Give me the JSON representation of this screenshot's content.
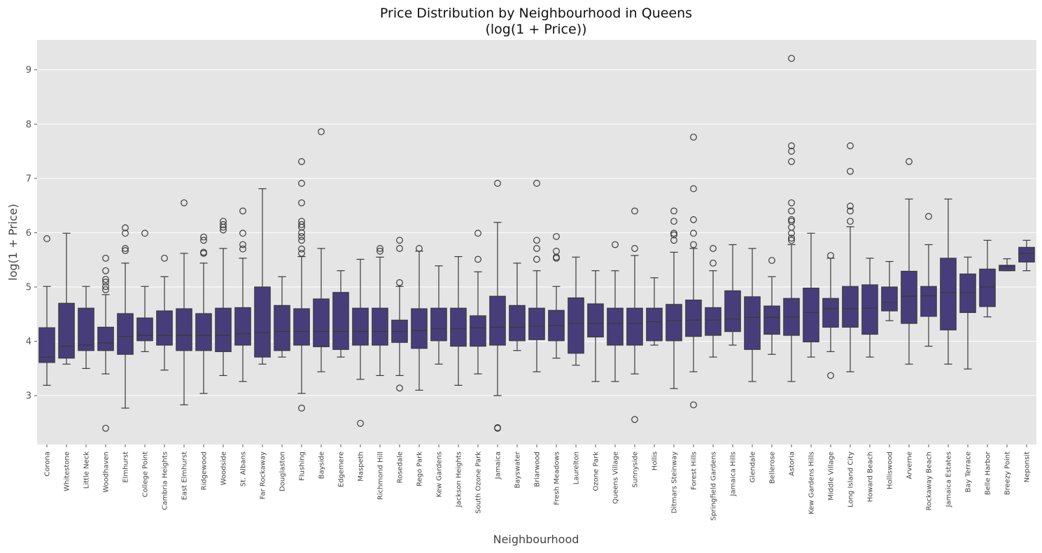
{
  "chart_data": {
    "type": "boxplot",
    "title": "Price Distribution by Neighbourhood in Queens",
    "subtitle": "(log(1 + Price))",
    "xlabel": "Neighbourhood",
    "ylabel": "log(1 + Price)",
    "ylim": [
      2.1,
      9.55
    ],
    "yticks": [
      3,
      4,
      5,
      6,
      7,
      8,
      9
    ],
    "grid": true,
    "box_color": "#483d7b",
    "background_color": "#e5e5e5",
    "categories": [
      "Corona",
      "Whitestone",
      "Little Neck",
      "Woodhaven",
      "Elmhurst",
      "College Point",
      "Cambria Heights",
      "East Elmhurst",
      "Ridgewood",
      "Woodside",
      "St. Albans",
      "Far Rockaway",
      "Douglaston",
      "Flushing",
      "Bayside",
      "Edgemere",
      "Maspeth",
      "Richmond Hill",
      "Rosedale",
      "Rego Park",
      "Kew Gardens",
      "Jackson Heights",
      "South Ozone Park",
      "Jamaica",
      "Bayswater",
      "Briarwood",
      "Fresh Meadows",
      "Laurelton",
      "Ozone Park",
      "Queens Village",
      "Sunnyside",
      "Hollis",
      "Ditmars Steinway",
      "Forest Hills",
      "Springfield Gardens",
      "Jamaica Hills",
      "Glendale",
      "Bellerose",
      "Astoria",
      "Kew Gardens Hills",
      "Middle Village",
      "Long Island City",
      "Howard Beach",
      "Holliswood",
      "Arverne",
      "Rockaway Beach",
      "Jamaica Estates",
      "Bay Terrace",
      "Belle Harbor",
      "Breezy Point",
      "Neponsit"
    ],
    "boxes": [
      {
        "whislo": 3.19,
        "q1": 3.61,
        "med": 3.71,
        "q3": 4.25,
        "whishi": 5.01,
        "fliers": [
          5.89
        ]
      },
      {
        "whislo": 3.58,
        "q1": 3.69,
        "med": 3.91,
        "q3": 4.7,
        "whishi": 5.99,
        "fliers": []
      },
      {
        "whislo": 3.5,
        "q1": 3.83,
        "med": 3.93,
        "q3": 4.61,
        "whishi": 5.01,
        "fliers": []
      },
      {
        "whislo": 3.4,
        "q1": 3.83,
        "med": 3.97,
        "q3": 4.26,
        "whishi": 4.86,
        "fliers": [
          2.4,
          4.95,
          5.01,
          5.09,
          5.14,
          5.3,
          5.53
        ]
      },
      {
        "whislo": 2.77,
        "q1": 3.76,
        "med": 4.09,
        "q3": 4.51,
        "whishi": 5.44,
        "fliers": [
          5.67,
          5.71,
          5.99,
          6.09
        ]
      },
      {
        "whislo": 3.81,
        "q1": 4.01,
        "med": 4.11,
        "q3": 4.43,
        "whishi": 5.01,
        "fliers": [
          5.99
        ]
      },
      {
        "whislo": 3.47,
        "q1": 3.93,
        "med": 4.11,
        "q3": 4.56,
        "whishi": 5.19,
        "fliers": [
          5.53
        ]
      },
      {
        "whislo": 2.83,
        "q1": 3.83,
        "med": 4.11,
        "q3": 4.6,
        "whishi": 5.62,
        "fliers": [
          6.55
        ]
      },
      {
        "whislo": 3.04,
        "q1": 3.83,
        "med": 4.11,
        "q3": 4.51,
        "whishi": 5.44,
        "fliers": [
          5.62,
          5.64,
          5.86,
          5.92
        ]
      },
      {
        "whislo": 3.37,
        "q1": 3.81,
        "med": 4.11,
        "q3": 4.61,
        "whishi": 5.71,
        "fliers": [
          6.05,
          6.1,
          6.15,
          6.21
        ]
      },
      {
        "whislo": 3.26,
        "q1": 3.93,
        "med": 4.14,
        "q3": 4.62,
        "whishi": 5.53,
        "fliers": [
          5.7,
          5.78,
          5.99,
          6.4
        ]
      },
      {
        "whislo": 3.58,
        "q1": 3.71,
        "med": 4.16,
        "q3": 5.0,
        "whishi": 6.81,
        "fliers": []
      },
      {
        "whislo": 3.71,
        "q1": 3.83,
        "med": 4.18,
        "q3": 4.66,
        "whishi": 5.19,
        "fliers": []
      },
      {
        "whislo": 3.04,
        "q1": 3.93,
        "med": 4.18,
        "q3": 4.6,
        "whishi": 5.56,
        "fliers": [
          2.77,
          5.62,
          5.7,
          5.86,
          5.93,
          6.0,
          6.1,
          6.15,
          6.21,
          6.55,
          6.91,
          7.31
        ]
      },
      {
        "whislo": 3.44,
        "q1": 3.9,
        "med": 4.18,
        "q3": 4.78,
        "whishi": 5.71,
        "fliers": [
          7.86
        ]
      },
      {
        "whislo": 3.71,
        "q1": 3.85,
        "med": 4.18,
        "q3": 4.9,
        "whishi": 5.3,
        "fliers": []
      },
      {
        "whislo": 3.3,
        "q1": 3.93,
        "med": 4.18,
        "q3": 4.61,
        "whishi": 5.51,
        "fliers": [
          2.49
        ]
      },
      {
        "whislo": 3.37,
        "q1": 3.93,
        "med": 4.18,
        "q3": 4.61,
        "whishi": 5.55,
        "fliers": [
          5.66,
          5.71
        ]
      },
      {
        "whislo": 3.37,
        "q1": 3.98,
        "med": 4.18,
        "q3": 4.39,
        "whishi": 5.01,
        "fliers": [
          3.14,
          5.08,
          5.71,
          5.86
        ]
      },
      {
        "whislo": 3.1,
        "q1": 3.87,
        "med": 4.2,
        "q3": 4.6,
        "whishi": 5.66,
        "fliers": [
          5.71
        ]
      },
      {
        "whislo": 3.58,
        "q1": 4.01,
        "med": 4.23,
        "q3": 4.61,
        "whishi": 5.39,
        "fliers": []
      },
      {
        "whislo": 3.19,
        "q1": 3.91,
        "med": 4.23,
        "q3": 4.61,
        "whishi": 5.56,
        "fliers": []
      },
      {
        "whislo": 3.4,
        "q1": 3.91,
        "med": 4.25,
        "q3": 4.47,
        "whishi": 5.28,
        "fliers": [
          5.51,
          5.99
        ]
      },
      {
        "whislo": 3.0,
        "q1": 3.93,
        "med": 4.26,
        "q3": 4.83,
        "whishi": 6.19,
        "fliers": [
          2.4,
          2.41,
          6.91
        ]
      },
      {
        "whislo": 3.83,
        "q1": 4.01,
        "med": 4.26,
        "q3": 4.66,
        "whishi": 5.44,
        "fliers": []
      },
      {
        "whislo": 3.44,
        "q1": 4.03,
        "med": 4.28,
        "q3": 4.61,
        "whishi": 5.3,
        "fliers": [
          5.51,
          5.71,
          5.86,
          6.91
        ]
      },
      {
        "whislo": 3.69,
        "q1": 4.01,
        "med": 4.29,
        "q3": 4.57,
        "whishi": 5.01,
        "fliers": [
          5.53,
          5.55,
          5.66,
          5.93
        ]
      },
      {
        "whislo": 3.56,
        "q1": 3.78,
        "med": 4.33,
        "q3": 4.8,
        "whishi": 5.55,
        "fliers": []
      },
      {
        "whislo": 3.26,
        "q1": 4.08,
        "med": 4.33,
        "q3": 4.69,
        "whishi": 5.3,
        "fliers": []
      },
      {
        "whislo": 3.26,
        "q1": 3.93,
        "med": 4.33,
        "q3": 4.61,
        "whishi": 5.3,
        "fliers": [
          5.78
        ]
      },
      {
        "whislo": 3.4,
        "q1": 3.93,
        "med": 4.33,
        "q3": 4.61,
        "whishi": 5.58,
        "fliers": [
          2.56,
          5.71,
          6.4
        ]
      },
      {
        "whislo": 3.93,
        "q1": 4.01,
        "med": 4.36,
        "q3": 4.61,
        "whishi": 5.17,
        "fliers": []
      },
      {
        "whislo": 3.13,
        "q1": 4.01,
        "med": 4.38,
        "q3": 4.68,
        "whishi": 5.64,
        "fliers": [
          5.86,
          5.96,
          5.99,
          6.21,
          6.4
        ]
      },
      {
        "whislo": 3.44,
        "q1": 4.09,
        "med": 4.39,
        "q3": 4.76,
        "whishi": 5.71,
        "fliers": [
          2.83,
          5.78,
          5.99,
          6.24,
          6.81,
          7.76
        ]
      },
      {
        "whislo": 3.71,
        "q1": 4.11,
        "med": 4.39,
        "q3": 4.62,
        "whishi": 5.3,
        "fliers": [
          5.44,
          5.71
        ]
      },
      {
        "whislo": 3.93,
        "q1": 4.18,
        "med": 4.41,
        "q3": 4.93,
        "whishi": 5.78,
        "fliers": []
      },
      {
        "whislo": 3.26,
        "q1": 3.85,
        "med": 4.44,
        "q3": 4.82,
        "whishi": 5.71,
        "fliers": []
      },
      {
        "whislo": 3.76,
        "q1": 4.13,
        "med": 4.44,
        "q3": 4.65,
        "whishi": 5.19,
        "fliers": [
          5.49
        ]
      },
      {
        "whislo": 3.26,
        "q1": 4.11,
        "med": 4.45,
        "q3": 4.79,
        "whishi": 5.78,
        "fliers": [
          5.86,
          5.9,
          5.99,
          6.1,
          6.21,
          6.24,
          6.4,
          6.55,
          7.31,
          7.5,
          7.6,
          9.21
        ]
      },
      {
        "whislo": 3.71,
        "q1": 3.99,
        "med": 4.53,
        "q3": 4.98,
        "whishi": 5.99,
        "fliers": []
      },
      {
        "whislo": 3.81,
        "q1": 4.26,
        "med": 4.6,
        "q3": 4.79,
        "whishi": 5.53,
        "fliers": [
          3.37,
          5.58
        ]
      },
      {
        "whislo": 3.44,
        "q1": 4.26,
        "med": 4.6,
        "q3": 5.01,
        "whishi": 6.11,
        "fliers": [
          6.21,
          6.4,
          6.49,
          7.13,
          7.6
        ]
      },
      {
        "whislo": 3.71,
        "q1": 4.13,
        "med": 4.61,
        "q3": 5.04,
        "whishi": 5.53,
        "fliers": []
      },
      {
        "whislo": 4.38,
        "q1": 4.56,
        "med": 4.72,
        "q3": 5.0,
        "whishi": 5.47,
        "fliers": []
      },
      {
        "whislo": 3.58,
        "q1": 4.33,
        "med": 4.83,
        "q3": 5.29,
        "whishi": 6.62,
        "fliers": [
          7.31
        ]
      },
      {
        "whislo": 3.91,
        "q1": 4.46,
        "med": 4.84,
        "q3": 5.01,
        "whishi": 5.78,
        "fliers": [
          6.3
        ]
      },
      {
        "whislo": 3.58,
        "q1": 4.21,
        "med": 4.9,
        "q3": 5.53,
        "whishi": 6.62,
        "fliers": []
      },
      {
        "whislo": 3.49,
        "q1": 4.53,
        "med": 4.9,
        "q3": 5.24,
        "whishi": 5.55,
        "fliers": []
      },
      {
        "whislo": 4.45,
        "q1": 4.64,
        "med": 5.0,
        "q3": 5.33,
        "whishi": 5.86,
        "fliers": []
      },
      {
        "whislo": 5.3,
        "q1": 5.3,
        "med": 5.38,
        "q3": 5.4,
        "whishi": 5.52,
        "fliers": []
      },
      {
        "whislo": 5.3,
        "q1": 5.46,
        "med": 5.62,
        "q3": 5.73,
        "whishi": 5.86,
        "fliers": []
      }
    ]
  }
}
